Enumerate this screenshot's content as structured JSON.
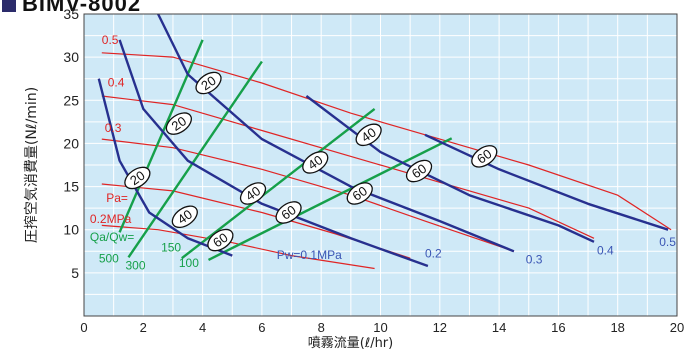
{
  "title": "BIMV-8002",
  "chart_data": {
    "type": "line",
    "xlabel": "噴霧流量(ℓ/hr)",
    "ylabel": "圧搾空気消費量(Nℓ/min)",
    "xlim": [
      0,
      20
    ],
    "ylim": [
      0,
      35
    ],
    "x_ticks": [
      "0",
      "2",
      "4",
      "6",
      "8",
      "10",
      "12",
      "14",
      "16",
      "18",
      "20"
    ],
    "y_ticks": [
      "5",
      "10",
      "15",
      "20",
      "25",
      "30",
      "35"
    ],
    "grid": true,
    "colors": {
      "background": "#cfe9f7",
      "grid": "#ffffff",
      "pa": "#e02525",
      "pw": "#27308f",
      "qa": "#16a04a",
      "pw_label": "#3a55b4",
      "pa_label": "#e02525"
    },
    "series_groups": {
      "pa": [
        {
          "name": "0.5",
          "points": [
            [
              0.6,
              30.5
            ],
            [
              3,
              30
            ],
            [
              6,
              27
            ],
            [
              9,
              23.5
            ],
            [
              12,
              20.5
            ],
            [
              15,
              17.5
            ],
            [
              18,
              14
            ],
            [
              19.8,
              10
            ]
          ]
        },
        {
          "name": "0.4",
          "points": [
            [
              0.6,
              25.5
            ],
            [
              3,
              24.5
            ],
            [
              6,
              21.5
            ],
            [
              9,
              18.5
            ],
            [
              12,
              15.5
            ],
            [
              15,
              12.5
            ],
            [
              17.2,
              9
            ]
          ]
        },
        {
          "name": "0.3",
          "points": [
            [
              0.6,
              20.5
            ],
            [
              3,
              19.5
            ],
            [
              6,
              17
            ],
            [
              9,
              14
            ],
            [
              11.5,
              11
            ],
            [
              14.5,
              7.5
            ]
          ]
        },
        {
          "name": "0.2",
          "points": [
            [
              0.6,
              15.3
            ],
            [
              3,
              14.5
            ],
            [
              6,
              12
            ],
            [
              8.5,
              9.5
            ],
            [
              11,
              6.7
            ]
          ]
        },
        {
          "name": "",
          "points": [
            [
              0.6,
              10.5
            ],
            [
              2.5,
              10
            ],
            [
              5,
              8.5
            ],
            [
              7,
              7
            ],
            [
              9.8,
              5.5
            ]
          ]
        }
      ],
      "pw": [
        {
          "name": "0.1MPa",
          "points": [
            [
              0.5,
              27.5
            ],
            [
              1.2,
              18
            ],
            [
              2.2,
              12
            ],
            [
              3.5,
              9
            ],
            [
              5,
              7
            ]
          ]
        },
        {
          "name": "0.2",
          "points": [
            [
              1.2,
              32
            ],
            [
              2,
              24
            ],
            [
              3.5,
              18
            ],
            [
              6,
              13
            ],
            [
              9,
              9
            ],
            [
              11.6,
              5.8
            ]
          ]
        },
        {
          "name": "0.3",
          "points": [
            [
              2.5,
              35
            ],
            [
              3.5,
              28
            ],
            [
              6,
              20.5
            ],
            [
              9,
              15
            ],
            [
              12,
              11
            ],
            [
              14.5,
              7.5
            ]
          ]
        },
        {
          "name": "0.4",
          "points": [
            [
              7.5,
              25.5
            ],
            [
              10,
              19
            ],
            [
              13,
              14
            ],
            [
              16,
              10.5
            ],
            [
              17.2,
              8.6
            ]
          ]
        },
        {
          "name": "0.5",
          "points": [
            [
              11.5,
              21
            ],
            [
              14,
              17
            ],
            [
              17,
              13
            ],
            [
              19.7,
              10
            ]
          ]
        }
      ],
      "qa": [
        {
          "name": "500",
          "points": [
            [
              1.2,
              9.7
            ],
            [
              4,
              32
            ]
          ]
        },
        {
          "name": "300",
          "points": [
            [
              1.5,
              6.8
            ],
            [
              6,
              29.5
            ]
          ]
        },
        {
          "name": "150",
          "points": [
            [
              3.3,
              6.7
            ],
            [
              9.8,
              24
            ]
          ]
        },
        {
          "name": "100",
          "points": [
            [
              4.2,
              6.5
            ],
            [
              12.4,
              20.6
            ]
          ]
        }
      ]
    },
    "bubbles": [
      {
        "label": "20",
        "x": 4.2,
        "y": 27
      },
      {
        "label": "20",
        "x": 3.2,
        "y": 22.3
      },
      {
        "label": "20",
        "x": 1.8,
        "y": 16
      },
      {
        "label": "40",
        "x": 3.4,
        "y": 11.5
      },
      {
        "label": "60",
        "x": 4.6,
        "y": 8.8
      },
      {
        "label": "40",
        "x": 5.7,
        "y": 14.2
      },
      {
        "label": "60",
        "x": 6.9,
        "y": 12
      },
      {
        "label": "40",
        "x": 7.8,
        "y": 17.8
      },
      {
        "label": "60",
        "x": 9.3,
        "y": 14.2
      },
      {
        "label": "40",
        "x": 9.6,
        "y": 21
      },
      {
        "label": "60",
        "x": 11.3,
        "y": 16.8
      },
      {
        "label": "60",
        "x": 13.5,
        "y": 18.5
      }
    ],
    "annotations": {
      "pa_labels": [
        {
          "text": "0.5",
          "x": 0.6,
          "y": 31.5
        },
        {
          "text": "0.4",
          "x": 0.8,
          "y": 26.6
        },
        {
          "text": "0.3",
          "x": 0.7,
          "y": 21.3
        },
        {
          "text": "Pa=",
          "x": 0.75,
          "y": 13.2
        },
        {
          "text": "0.2MPa",
          "x": 0.2,
          "y": 10.8
        }
      ],
      "pw_labels": [
        {
          "text": "Pw=0.1MPa",
          "x": 6.5,
          "y": 6.6
        },
        {
          "text": "0.2",
          "x": 11.5,
          "y": 6.8
        },
        {
          "text": "0.3",
          "x": 14.9,
          "y": 6.1
        },
        {
          "text": "0.4",
          "x": 17.3,
          "y": 7.1
        },
        {
          "text": "0.5",
          "x": 19.4,
          "y": 8.1
        }
      ],
      "qa_labels": [
        {
          "text": "Qa/Qw=",
          "x": 0.2,
          "y": 8.7
        },
        {
          "text": "500",
          "x": 0.5,
          "y": 6.2
        },
        {
          "text": "300",
          "x": 1.4,
          "y": 5.4
        },
        {
          "text": "150",
          "x": 2.6,
          "y": 7.5
        },
        {
          "text": "100",
          "x": 3.2,
          "y": 5.7
        }
      ]
    }
  }
}
